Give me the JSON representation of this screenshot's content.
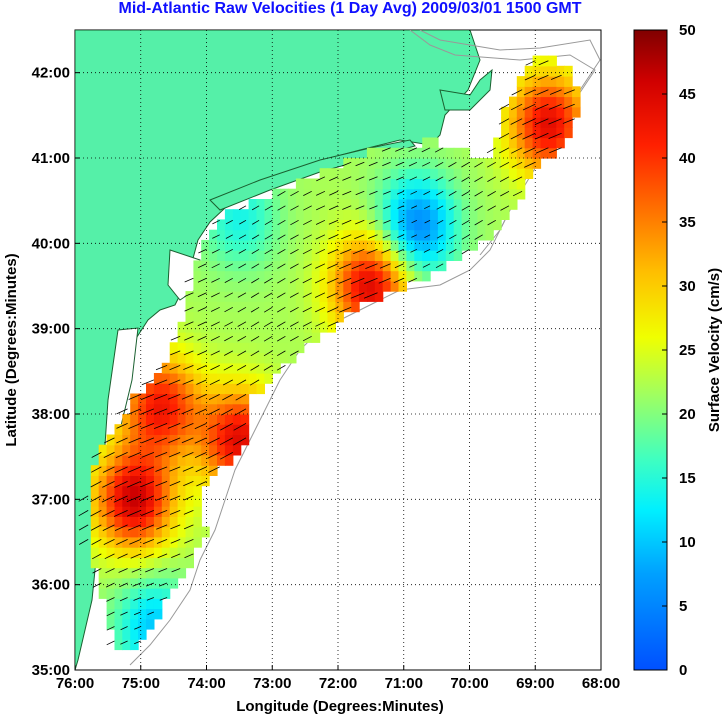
{
  "title": "Mid-Atlantic Raw Velocities (1 Day Avg) 2009/03/01 1500 GMT",
  "map": {
    "xlabel": "Longitude (Degrees:Minutes)",
    "ylabel": "Latitude (Degrees:Minutes)",
    "x_ticks": [
      "76:00",
      "75:00",
      "74:00",
      "73:00",
      "72:00",
      "71:00",
      "70:00",
      "69:00",
      "68:00"
    ],
    "y_ticks": [
      "35:00",
      "36:00",
      "37:00",
      "38:00",
      "39:00",
      "40:00",
      "41:00",
      "42:00"
    ],
    "lon_range": [
      -76,
      -68
    ],
    "lat_range": [
      35,
      42.5
    ],
    "grid": "dotted",
    "land_color": "#55f0a8",
    "colors": {
      "land": "#55f0a8",
      "water": "#ffffff",
      "arrow": "#000000"
    }
  },
  "colorbar": {
    "label": "Surface Velocity (cm/s)",
    "ticks": [
      "0",
      "5",
      "10",
      "15",
      "20",
      "25",
      "30",
      "35",
      "40",
      "45",
      "50"
    ],
    "range": [
      0,
      50
    ],
    "colormap": "jet"
  },
  "chart_data": {
    "type": "heatmap",
    "title": "Mid-Atlantic Raw Velocities (1 Day Avg) 2009/03/01 1500 GMT",
    "xlabel": "Longitude (Degrees:Minutes)",
    "ylabel": "Latitude (Degrees:Minutes)",
    "xlim": [
      -76,
      -68
    ],
    "ylim": [
      35,
      42.5
    ],
    "color_range": [
      0,
      50
    ],
    "hotspots": [
      {
        "lon": -74.7,
        "lat": 38.1,
        "speed": 42
      },
      {
        "lon": -75.1,
        "lat": 37.0,
        "speed": 46
      },
      {
        "lon": -73.5,
        "lat": 37.7,
        "speed": 44
      },
      {
        "lon": -71.5,
        "lat": 39.5,
        "speed": 45
      },
      {
        "lon": -68.8,
        "lat": 41.4,
        "speed": 44
      },
      {
        "lon": -70.8,
        "lat": 40.2,
        "speed": 5
      },
      {
        "lon": -73.5,
        "lat": 40.3,
        "speed": 14
      },
      {
        "lon": -74.8,
        "lat": 35.5,
        "speed": 10
      }
    ]
  }
}
